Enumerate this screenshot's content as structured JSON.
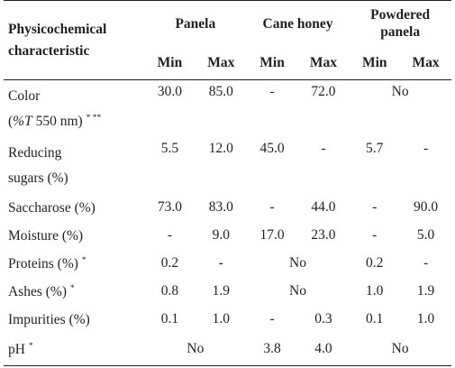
{
  "header": {
    "characteristic": "Physicochemical characteristic",
    "groups": [
      "Panela",
      "Cane honey",
      "Powdered panela"
    ],
    "sub": [
      "Min",
      "Max",
      "Min",
      "Max",
      "Min",
      "Max"
    ]
  },
  "rows": [
    {
      "line1": "Color",
      "line2_prefix": "(",
      "line2_italic": "%T",
      "line2_suffix": " 550 nm)",
      "sup": "* **",
      "cells": [
        {
          "text": "30.0",
          "span": 1
        },
        {
          "text": "85.0",
          "span": 1
        },
        {
          "text": "-",
          "span": 1
        },
        {
          "text": "72.0",
          "span": 1
        },
        {
          "text": "No",
          "span": 2
        }
      ]
    },
    {
      "line1": "Reducing",
      "line2": "sugars (%)",
      "cells": [
        {
          "text": "5.5",
          "span": 1
        },
        {
          "text": "12.0",
          "span": 1
        },
        {
          "text": "45.0",
          "span": 1
        },
        {
          "text": "-",
          "span": 1
        },
        {
          "text": "5.7",
          "span": 1
        },
        {
          "text": "-",
          "span": 1
        }
      ]
    },
    {
      "label": "Saccharose (%)",
      "sup": "",
      "cells": [
        {
          "text": "73.0",
          "span": 1
        },
        {
          "text": "83.0",
          "span": 1
        },
        {
          "text": "-",
          "span": 1
        },
        {
          "text": "44.0",
          "span": 1
        },
        {
          "text": "-",
          "span": 1
        },
        {
          "text": "90.0",
          "span": 1
        }
      ]
    },
    {
      "label": "Moisture (%)",
      "sup": "",
      "cells": [
        {
          "text": "-",
          "span": 1
        },
        {
          "text": "9.0",
          "span": 1
        },
        {
          "text": "17.0",
          "span": 1
        },
        {
          "text": "23.0",
          "span": 1
        },
        {
          "text": "-",
          "span": 1
        },
        {
          "text": "5.0",
          "span": 1
        }
      ]
    },
    {
      "label": "Proteins (%)",
      "sup": "*",
      "cells": [
        {
          "text": "0.2",
          "span": 1
        },
        {
          "text": "-",
          "span": 1
        },
        {
          "text": "No",
          "span": 2
        },
        {
          "text": "0.2",
          "span": 1
        },
        {
          "text": "-",
          "span": 1
        }
      ]
    },
    {
      "label": "Ashes (%)",
      "sup": "*",
      "cells": [
        {
          "text": "0.8",
          "span": 1
        },
        {
          "text": "1.9",
          "span": 1
        },
        {
          "text": "No",
          "span": 2
        },
        {
          "text": "1.0",
          "span": 1
        },
        {
          "text": "1.9",
          "span": 1
        }
      ]
    },
    {
      "label": "Impurities (%)",
      "sup": "",
      "cells": [
        {
          "text": "0.1",
          "span": 1
        },
        {
          "text": "1.0",
          "span": 1
        },
        {
          "text": "-",
          "span": 1
        },
        {
          "text": "0.3",
          "span": 1
        },
        {
          "text": "0.1",
          "span": 1
        },
        {
          "text": "1.0",
          "span": 1
        }
      ]
    },
    {
      "label": "pH",
      "sup": "*",
      "cells": [
        {
          "text": "No",
          "span": 2
        },
        {
          "text": "3.8",
          "span": 1
        },
        {
          "text": "4.0",
          "span": 1
        },
        {
          "text": "No",
          "span": 2
        }
      ]
    }
  ]
}
